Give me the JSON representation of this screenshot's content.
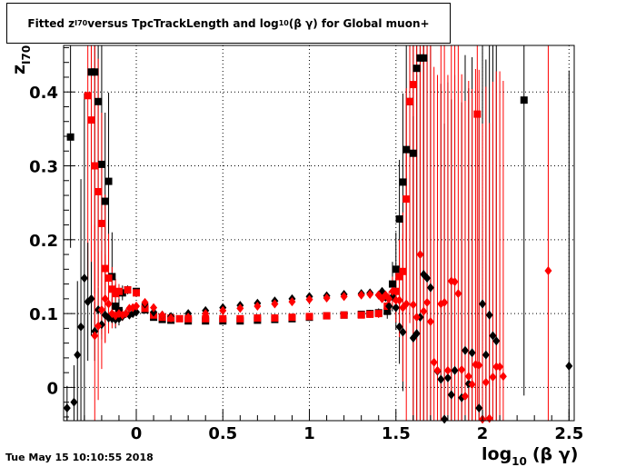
{
  "title": {
    "prefix": "Fitted  z",
    "sub": "I70",
    "middle": "  versus TpcTrackLength and log",
    "sub2": "10",
    "suffix": " (β γ) for Global muon+"
  },
  "timestamp": "Tue May 15 10:10:55 2018",
  "colors": {
    "black_series": "#000000",
    "red_series": "#ff0000",
    "grid": "#000000"
  },
  "chart_data": {
    "type": "scatter",
    "xlabel": "log",
    "xlabel_sub": "10",
    "xlabel_suffix": "(β γ)",
    "ylabel": "z",
    "ylabel_sub": "I70",
    "xlim": [
      -0.42,
      2.53
    ],
    "ylim": [
      -0.045,
      0.463
    ],
    "grid": true,
    "xticks": [
      {
        "v": 0,
        "label": "0"
      },
      {
        "v": 0.5,
        "label": "0.5"
      },
      {
        "v": 1,
        "label": "1"
      },
      {
        "v": 1.5,
        "label": "1.5"
      },
      {
        "v": 2,
        "label": "2"
      },
      {
        "v": 2.5,
        "label": "2.5"
      }
    ],
    "yticks": [
      {
        "v": 0,
        "label": "0"
      },
      {
        "v": 0.1,
        "label": "0.1"
      },
      {
        "v": 0.2,
        "label": "0.2"
      },
      {
        "v": 0.3,
        "label": "0.3"
      },
      {
        "v": 0.4,
        "label": "0.4"
      }
    ],
    "series": [
      {
        "marker": "square",
        "color": "black",
        "x": [
          -0.38,
          -0.26,
          -0.24,
          -0.22,
          -0.2,
          -0.18,
          -0.16,
          -0.14,
          -0.12,
          -0.1,
          -0.08,
          -0.05,
          0.0,
          0.05,
          0.1,
          0.15,
          0.2,
          0.3,
          0.4,
          0.5,
          0.6,
          0.7,
          0.8,
          0.9,
          1.0,
          1.1,
          1.2,
          1.3,
          1.35,
          1.4,
          1.45,
          1.48,
          1.5,
          1.52,
          1.54,
          1.56,
          1.58,
          1.6,
          1.62,
          1.64,
          1.66,
          2.24
        ],
        "y": [
          0.339,
          0.427,
          0.427,
          0.387,
          0.302,
          0.252,
          0.279,
          0.15,
          0.11,
          0.104,
          0.128,
          0.132,
          0.13,
          0.105,
          0.095,
          0.092,
          0.091,
          0.09,
          0.09,
          0.09,
          0.09,
          0.091,
          0.092,
          0.093,
          0.095,
          0.097,
          0.098,
          0.099,
          0.1,
          0.101,
          0.103,
          0.14,
          0.16,
          0.228,
          0.278,
          0.322,
          0.387,
          0.317,
          0.432,
          0.446,
          0.446,
          0.389
        ],
        "err": [
          0.15,
          0.3,
          0.3,
          0.25,
          0.2,
          0.12,
          0.12,
          0.06,
          0.03,
          0.02,
          0.01,
          0.006,
          0.004,
          0.003,
          0.002,
          0.002,
          0.002,
          0.002,
          0.002,
          0.002,
          0.002,
          0.002,
          0.002,
          0.002,
          0.002,
          0.003,
          0.003,
          0.004,
          0.005,
          0.006,
          0.01,
          0.03,
          0.05,
          0.08,
          0.12,
          0.16,
          0.2,
          0.2,
          0.25,
          0.3,
          0.3,
          0.4
        ]
      },
      {
        "marker": "square",
        "color": "red",
        "x": [
          -0.28,
          -0.26,
          -0.24,
          -0.22,
          -0.2,
          -0.18,
          -0.16,
          -0.14,
          -0.12,
          -0.1,
          -0.05,
          0.0,
          0.05,
          0.1,
          0.15,
          0.2,
          0.25,
          0.3,
          0.4,
          0.5,
          0.6,
          0.7,
          0.8,
          0.9,
          1.0,
          1.1,
          1.2,
          1.3,
          1.35,
          1.4,
          1.45,
          1.5,
          1.52,
          1.54,
          1.56,
          1.58,
          1.6,
          1.97
        ],
        "y": [
          0.395,
          0.362,
          0.3,
          0.265,
          0.222,
          0.161,
          0.148,
          0.133,
          0.127,
          0.13,
          0.132,
          0.128,
          0.107,
          0.098,
          0.095,
          0.094,
          0.093,
          0.093,
          0.093,
          0.093,
          0.093,
          0.094,
          0.094,
          0.095,
          0.096,
          0.097,
          0.098,
          0.098,
          0.099,
          0.1,
          0.11,
          0.13,
          0.15,
          0.157,
          0.255,
          0.387,
          0.41,
          0.37
        ],
        "err": [
          0.25,
          0.2,
          0.2,
          0.18,
          0.15,
          0.1,
          0.06,
          0.03,
          0.02,
          0.01,
          0.005,
          0.004,
          0.003,
          0.002,
          0.002,
          0.002,
          0.002,
          0.002,
          0.002,
          0.002,
          0.002,
          0.002,
          0.002,
          0.002,
          0.002,
          0.003,
          0.003,
          0.004,
          0.005,
          0.006,
          0.01,
          0.03,
          0.05,
          0.08,
          0.15,
          0.3,
          0.35,
          0.4
        ]
      },
      {
        "marker": "diamond",
        "color": "black",
        "x": [
          -0.4,
          -0.36,
          -0.34,
          -0.32,
          -0.3,
          -0.28,
          -0.26,
          -0.24,
          -0.22,
          -0.2,
          -0.18,
          -0.16,
          -0.14,
          -0.12,
          -0.1,
          -0.08,
          -0.06,
          -0.04,
          -0.02,
          0.0,
          0.05,
          0.1,
          0.15,
          0.2,
          0.3,
          0.4,
          0.5,
          0.6,
          0.7,
          0.8,
          0.9,
          1.0,
          1.1,
          1.2,
          1.3,
          1.35,
          1.4,
          1.42,
          1.44,
          1.46,
          1.48,
          1.5,
          1.52,
          1.54,
          1.6,
          1.62,
          1.64,
          1.66,
          1.68,
          1.7,
          1.74,
          1.76,
          1.78,
          1.8,
          1.82,
          1.84,
          1.88,
          1.9,
          1.92,
          1.94,
          1.98,
          2.0,
          2.02,
          2.04,
          2.06,
          2.08,
          2.5
        ],
        "y": [
          -0.028,
          -0.02,
          0.044,
          0.082,
          0.148,
          0.116,
          0.12,
          0.076,
          0.105,
          0.085,
          0.098,
          0.094,
          0.093,
          0.092,
          0.093,
          0.096,
          0.1,
          0.098,
          0.1,
          0.102,
          0.113,
          0.102,
          0.098,
          0.096,
          0.1,
          0.104,
          0.108,
          0.111,
          0.114,
          0.117,
          0.12,
          0.123,
          0.124,
          0.126,
          0.127,
          0.128,
          0.125,
          0.13,
          0.122,
          0.11,
          0.123,
          0.108,
          0.082,
          0.075,
          0.067,
          0.073,
          0.095,
          0.153,
          0.148,
          0.135,
          0.022,
          0.011,
          -0.043,
          0.013,
          -0.01,
          0.023,
          -0.014,
          0.05,
          0.005,
          0.047,
          -0.028,
          0.113,
          0.044,
          0.098,
          0.07,
          0.063,
          0.029
        ],
        "err": [
          0.03,
          0.05,
          0.1,
          0.2,
          0.25,
          0.08,
          0.05,
          0.04,
          0.03,
          0.02,
          0.01,
          0.008,
          0.006,
          0.005,
          0.004,
          0.004,
          0.003,
          0.003,
          0.003,
          0.003,
          0.003,
          0.002,
          0.002,
          0.002,
          0.002,
          0.002,
          0.002,
          0.002,
          0.002,
          0.002,
          0.002,
          0.002,
          0.002,
          0.002,
          0.003,
          0.003,
          0.004,
          0.004,
          0.005,
          0.01,
          0.02,
          0.03,
          0.05,
          0.08,
          0.3,
          0.35,
          0.4,
          0.4,
          0.4,
          0.4,
          0.4,
          0.4,
          0.4,
          0.4,
          0.4,
          0.4,
          0.4,
          0.4,
          0.4,
          0.4,
          0.4,
          0.4,
          0.4,
          0.4,
          0.4,
          0.4,
          0.4
        ]
      },
      {
        "marker": "diamond",
        "color": "red",
        "x": [
          -0.24,
          -0.22,
          -0.2,
          -0.18,
          -0.16,
          -0.14,
          -0.12,
          -0.1,
          -0.08,
          -0.06,
          -0.04,
          -0.02,
          0.0,
          0.05,
          0.1,
          0.15,
          0.2,
          0.3,
          0.4,
          0.5,
          0.6,
          0.7,
          0.8,
          0.9,
          1.0,
          1.1,
          1.2,
          1.3,
          1.35,
          1.4,
          1.42,
          1.44,
          1.46,
          1.48,
          1.5,
          1.52,
          1.54,
          1.56,
          1.6,
          1.62,
          1.64,
          1.66,
          1.68,
          1.7,
          1.72,
          1.74,
          1.76,
          1.78,
          1.8,
          1.82,
          1.84,
          1.86,
          1.88,
          1.9,
          1.92,
          1.94,
          1.96,
          1.98,
          2.0,
          2.02,
          2.04,
          2.06,
          2.08,
          2.1,
          2.12,
          2.38
        ],
        "y": [
          0.07,
          0.083,
          0.105,
          0.12,
          0.113,
          0.1,
          0.097,
          0.1,
          0.098,
          0.1,
          0.107,
          0.108,
          0.11,
          0.115,
          0.108,
          0.098,
          0.094,
          0.095,
          0.1,
          0.104,
          0.107,
          0.11,
          0.113,
          0.116,
          0.119,
          0.121,
          0.123,
          0.125,
          0.126,
          0.125,
          0.12,
          0.125,
          0.12,
          0.13,
          0.118,
          0.118,
          0.108,
          0.113,
          0.112,
          0.095,
          0.18,
          0.103,
          0.115,
          0.089,
          0.034,
          0.023,
          0.113,
          0.115,
          0.023,
          0.144,
          0.143,
          0.127,
          0.024,
          -0.012,
          0.015,
          0.004,
          0.031,
          0.03,
          -0.043,
          0.007,
          -0.042,
          0.014,
          0.028,
          0.028,
          0.015,
          0.158
        ],
        "err": [
          0.15,
          0.1,
          0.08,
          0.06,
          0.04,
          0.02,
          0.015,
          0.01,
          0.008,
          0.006,
          0.005,
          0.004,
          0.004,
          0.003,
          0.003,
          0.002,
          0.002,
          0.002,
          0.002,
          0.002,
          0.002,
          0.002,
          0.002,
          0.002,
          0.002,
          0.002,
          0.002,
          0.003,
          0.003,
          0.004,
          0.005,
          0.006,
          0.01,
          0.02,
          0.03,
          0.05,
          0.1,
          0.2,
          0.3,
          0.4,
          0.4,
          0.4,
          0.4,
          0.4,
          0.4,
          0.4,
          0.4,
          0.4,
          0.4,
          0.4,
          0.4,
          0.4,
          0.4,
          0.4,
          0.4,
          0.4,
          0.4,
          0.4,
          0.4,
          0.4,
          0.4,
          0.4,
          0.4,
          0.4,
          0.4,
          0.4
        ]
      }
    ]
  }
}
